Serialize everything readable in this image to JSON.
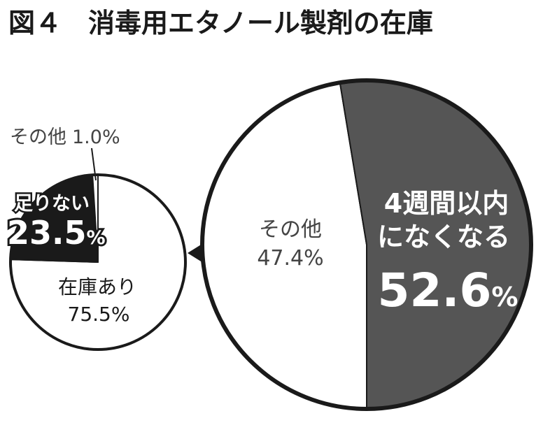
{
  "title": "図４　消毒用エタノール製剤の在庫",
  "colors": {
    "ink": "#1a1a1a",
    "dark_slice": "#555555",
    "background": "#ffffff"
  },
  "chart_data": [
    {
      "type": "pie",
      "slices": [
        {
          "label": "在庫あり",
          "value": 75.5,
          "value_text": "75.5%",
          "color": "#ffffff"
        },
        {
          "label": "足りない",
          "value": 23.5,
          "value_text": "23.5",
          "unit": "%",
          "color": "#1a1a1a"
        },
        {
          "label": "その他",
          "value": 1.0,
          "value_text": "1.0%",
          "color": "#ffffff"
        }
      ]
    },
    {
      "type": "pie",
      "slices": [
        {
          "label": "その他",
          "value": 47.4,
          "value_text": "47.4%",
          "color": "#ffffff"
        },
        {
          "label_lines": [
            "4週間以内",
            "になくなる"
          ],
          "value": 52.6,
          "value_text": "52.6",
          "unit": "%",
          "color": "#555555"
        }
      ]
    }
  ]
}
